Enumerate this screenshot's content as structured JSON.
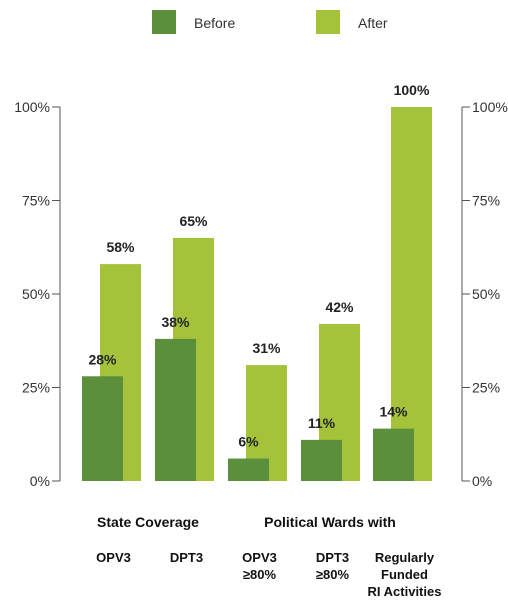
{
  "chart_data": {
    "type": "bar",
    "categories": [
      [
        "OPV3"
      ],
      [
        "DPT3"
      ],
      [
        "OPV3",
        "≥80%"
      ],
      [
        "DPT3",
        "≥80%"
      ],
      [
        "Regularly",
        "Funded",
        "RI Activities"
      ]
    ],
    "groups": [
      {
        "label": "State Coverage",
        "categories": [
          0,
          1
        ]
      },
      {
        "label": "Political Wards with",
        "categories": [
          2,
          3,
          4
        ]
      }
    ],
    "series": [
      {
        "name": "Before",
        "color": "#5b8f3c",
        "values": [
          28,
          38,
          6,
          11,
          14
        ]
      },
      {
        "name": "After",
        "color": "#a5c33a",
        "values": [
          58,
          65,
          31,
          42,
          100
        ]
      }
    ],
    "value_suffix": "%",
    "ylim": [
      0,
      100
    ],
    "yticks": [
      0,
      25,
      50,
      75,
      100
    ],
    "ytick_labels": [
      "0%",
      "25%",
      "50%",
      "75%",
      "100%"
    ],
    "dual_y_axis": true,
    "legend_position": "top-center",
    "grid": false
  }
}
